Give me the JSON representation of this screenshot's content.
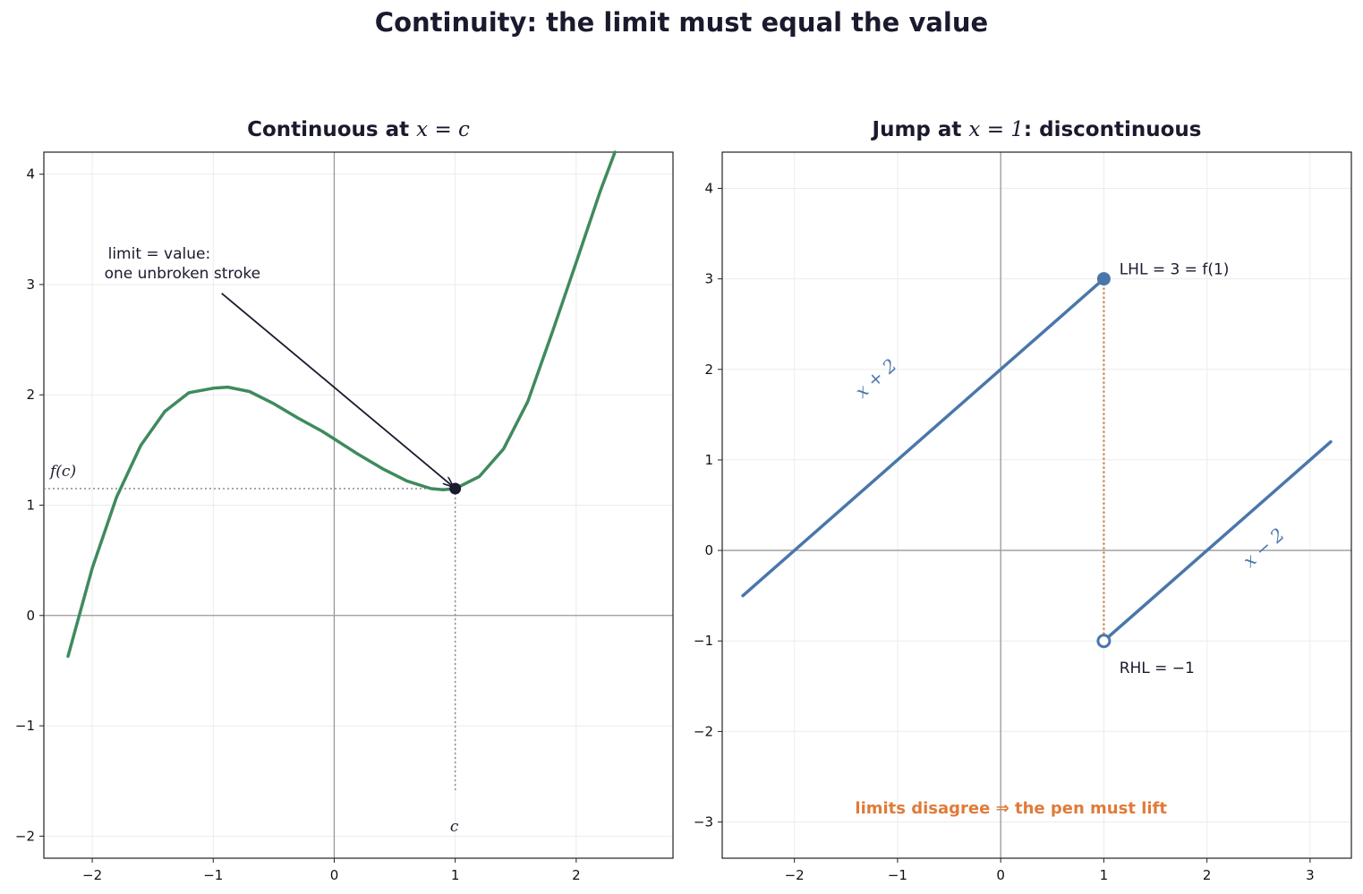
{
  "title": "Continuity: the limit must equal the value",
  "chart_data": [
    {
      "type": "line",
      "title_prefix": "Continuous at ",
      "title_math": "x = c",
      "xlim": [
        -2.4,
        2.8
      ],
      "ylim": [
        -2.2,
        4.2
      ],
      "xticks": [
        -2,
        -1,
        0,
        1,
        2
      ],
      "yticks": [
        -2,
        -1,
        0,
        1,
        2,
        3,
        4
      ],
      "tick_labels_x": [
        "−2",
        "−1",
        "0",
        "1",
        "2"
      ],
      "tick_labels_y": [
        "−2",
        "−1",
        "0",
        "1",
        "2",
        "3",
        "4"
      ],
      "grid": true,
      "series": [
        {
          "color": "#3f8a5e",
          "x": [
            -2.2,
            -2.0,
            -1.8,
            -1.6,
            -1.4,
            -1.2,
            -1.0,
            -0.88,
            -0.7,
            -0.5,
            -0.3,
            -0.1,
            0.0,
            0.2,
            0.4,
            0.6,
            0.8,
            0.9,
            1.0,
            1.2,
            1.4,
            1.6,
            1.8,
            2.0,
            2.2,
            2.32
          ],
          "y": [
            -0.37,
            0.43,
            1.07,
            1.54,
            1.85,
            2.02,
            2.06,
            2.07,
            2.03,
            1.92,
            1.79,
            1.67,
            1.6,
            1.46,
            1.33,
            1.22,
            1.15,
            1.14,
            1.15,
            1.26,
            1.51,
            1.94,
            2.56,
            3.2,
            3.85,
            4.2
          ]
        }
      ],
      "point": {
        "x": 1.0,
        "y": 1.15,
        "color": "#1a1a2e"
      },
      "guide_bottom": -1.6,
      "fc_label": "f(c)",
      "c_label": "c",
      "annotation": {
        "lines": [
          "limit  =  value:",
          "one unbroken stroke"
        ],
        "text_x": -1.9,
        "text_y": 3.05,
        "arrow_from": [
          -0.93,
          2.92
        ],
        "arrow_to": [
          0.98,
          1.17
        ]
      }
    },
    {
      "type": "line",
      "title_prefix": "Jump at ",
      "title_math": "x = 1",
      "title_suffix": ": discontinuous",
      "xlim": [
        -2.7,
        3.4
      ],
      "ylim": [
        -3.4,
        4.4
      ],
      "xticks": [
        -2,
        -1,
        0,
        1,
        2,
        3
      ],
      "yticks": [
        -3,
        -2,
        -1,
        0,
        1,
        2,
        3,
        4
      ],
      "tick_labels_x": [
        "−2",
        "−1",
        "0",
        "1",
        "2",
        "3"
      ],
      "tick_labels_y": [
        "−3",
        "−2",
        "−1",
        "0",
        "1",
        "2",
        "3",
        "4"
      ],
      "grid": true,
      "series": [
        {
          "label": "x + 2",
          "color": "#4a76ab",
          "x": [
            -2.5,
            1.0
          ],
          "y": [
            -0.5,
            3.0
          ]
        },
        {
          "label": "x − 2",
          "color": "#4a76ab",
          "x": [
            1.0,
            3.2
          ],
          "y": [
            -1.0,
            1.2
          ]
        }
      ],
      "closed_point": {
        "x": 1.0,
        "y": 3.0
      },
      "open_point": {
        "x": 1.0,
        "y": -1.0
      },
      "jump_color": "#c47a3a",
      "lhl_label": "LHL  = 3 = f(1)",
      "rhl_label": "RHL  = −1",
      "bottom_note": "limits disagree ⇒ the pen must lift",
      "note_color": "#e07b39"
    }
  ]
}
